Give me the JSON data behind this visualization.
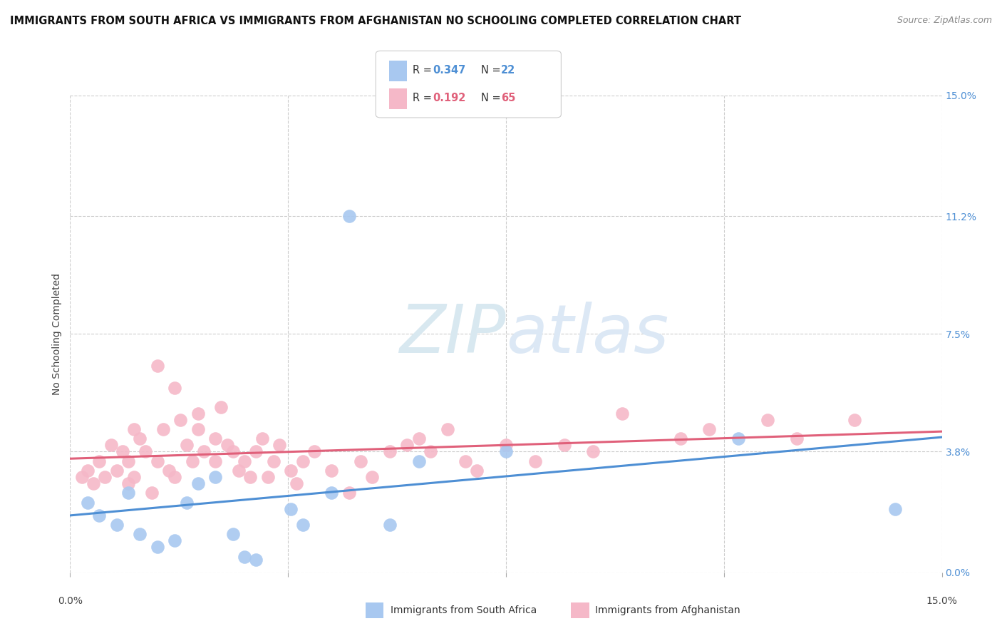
{
  "title": "IMMIGRANTS FROM SOUTH AFRICA VS IMMIGRANTS FROM AFGHANISTAN NO SCHOOLING COMPLETED CORRELATION CHART",
  "source": "Source: ZipAtlas.com",
  "ylabel": "No Schooling Completed",
  "ytick_values": [
    0.0,
    3.8,
    7.5,
    11.2,
    15.0
  ],
  "xlim": [
    0.0,
    15.0
  ],
  "ylim": [
    0.0,
    15.0
  ],
  "series1_label": "Immigrants from South Africa",
  "series2_label": "Immigrants from Afghanistan",
  "color_blue": "#a8c8f0",
  "color_blue_line": "#4e8fd4",
  "color_pink": "#f5b8c8",
  "color_pink_line": "#e0607a",
  "watermark_color": "#dce8f5",
  "background_color": "#ffffff",
  "grid_color": "#cccccc",
  "south_africa_x": [
    0.3,
    0.5,
    0.8,
    1.0,
    1.2,
    1.5,
    1.8,
    2.0,
    2.2,
    2.5,
    2.8,
    3.0,
    3.2,
    3.8,
    4.0,
    4.5,
    4.8,
    5.5,
    6.0,
    7.5,
    11.5,
    14.2
  ],
  "south_africa_y": [
    2.2,
    1.8,
    1.5,
    2.5,
    1.2,
    0.8,
    1.0,
    2.2,
    2.8,
    3.0,
    1.2,
    0.5,
    0.4,
    2.0,
    1.5,
    2.5,
    11.2,
    1.5,
    3.5,
    3.8,
    4.2,
    2.0
  ],
  "afghanistan_x": [
    0.2,
    0.3,
    0.4,
    0.5,
    0.6,
    0.7,
    0.8,
    0.9,
    1.0,
    1.0,
    1.1,
    1.1,
    1.2,
    1.3,
    1.4,
    1.5,
    1.5,
    1.6,
    1.7,
    1.8,
    1.8,
    1.9,
    2.0,
    2.1,
    2.2,
    2.2,
    2.3,
    2.5,
    2.5,
    2.6,
    2.7,
    2.8,
    2.9,
    3.0,
    3.1,
    3.2,
    3.3,
    3.4,
    3.5,
    3.6,
    3.8,
    3.9,
    4.0,
    4.2,
    4.5,
    4.8,
    5.0,
    5.2,
    5.5,
    5.8,
    6.0,
    6.2,
    6.5,
    6.8,
    7.0,
    7.5,
    8.0,
    8.5,
    9.0,
    9.5,
    10.5,
    11.0,
    12.0,
    12.5,
    13.5
  ],
  "afghanistan_y": [
    3.0,
    3.2,
    2.8,
    3.5,
    3.0,
    4.0,
    3.2,
    3.8,
    2.8,
    3.5,
    4.5,
    3.0,
    4.2,
    3.8,
    2.5,
    3.5,
    6.5,
    4.5,
    3.2,
    5.8,
    3.0,
    4.8,
    4.0,
    3.5,
    5.0,
    4.5,
    3.8,
    3.5,
    4.2,
    5.2,
    4.0,
    3.8,
    3.2,
    3.5,
    3.0,
    3.8,
    4.2,
    3.0,
    3.5,
    4.0,
    3.2,
    2.8,
    3.5,
    3.8,
    3.2,
    2.5,
    3.5,
    3.0,
    3.8,
    4.0,
    4.2,
    3.8,
    4.5,
    3.5,
    3.2,
    4.0,
    3.5,
    4.0,
    3.8,
    5.0,
    4.2,
    4.5,
    4.8,
    4.2,
    4.8
  ],
  "title_fontsize": 10.5,
  "axis_label_fontsize": 10,
  "tick_fontsize": 10,
  "source_fontsize": 9
}
